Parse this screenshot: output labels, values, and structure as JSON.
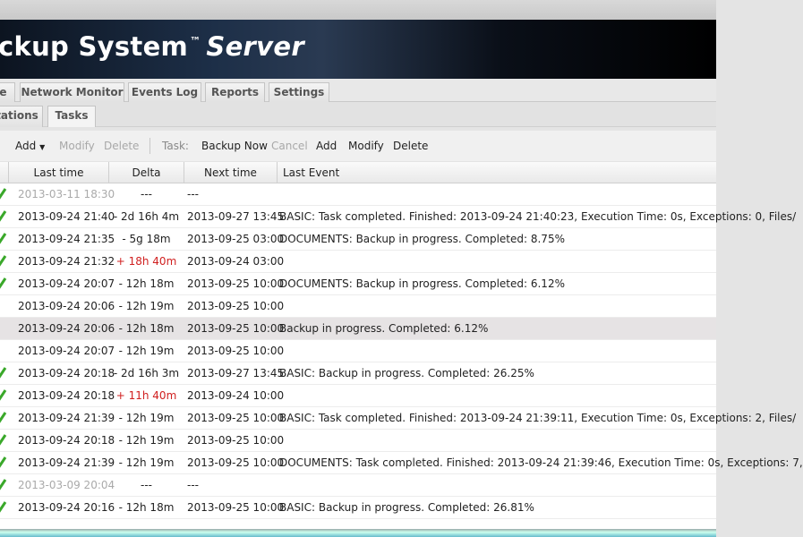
{
  "banner": {
    "title": "ckup System",
    "tm": "™",
    "title2": "Server"
  },
  "tabs": [
    {
      "label": "e"
    },
    {
      "label": "Network Monitor"
    },
    {
      "label": "Events Log"
    },
    {
      "label": "Reports"
    },
    {
      "label": "Settings"
    }
  ],
  "subtabs": [
    {
      "label": "tations"
    },
    {
      "label": "Tasks",
      "active": true
    }
  ],
  "toolbar": {
    "add": "Add",
    "modify": "Modify",
    "delete": "Delete",
    "task_label": "Task:",
    "backup_now": "Backup Now",
    "cancel": "Cancel",
    "task_add": "Add",
    "task_modify": "Modify",
    "task_delete": "Delete"
  },
  "columns": [
    "Last time",
    "Delta",
    "Next time",
    "Last Event"
  ],
  "colors": {
    "ok": "#3aa82a",
    "delta_positive": "#d02020",
    "selected_row": "#e6e3e4"
  },
  "rows": [
    {
      "status": "ok",
      "last": "2013-03-11 18:30",
      "delta": "---",
      "next": "---",
      "event": "",
      "dim": true
    },
    {
      "status": "ok",
      "last": "2013-09-24 21:40",
      "delta": "- 2d 16h 4m",
      "next": "2013-09-27 13:45",
      "event": "BASIC: Task completed. Finished: 2013-09-24 21:40:23, Execution Time: 0s, Exceptions: 0, Files/"
    },
    {
      "status": "ok",
      "last": "2013-09-24 21:35",
      "delta": "- 5g 18m",
      "next": "2013-09-25 03:00",
      "event": "DOCUMENTS: Backup in progress. Completed: 8.75%"
    },
    {
      "status": "ok",
      "last": "2013-09-24 21:32",
      "delta": "+ 18h 40m",
      "next": "2013-09-24 03:00",
      "event": "",
      "late": true
    },
    {
      "status": "ok",
      "last": "2013-09-24 20:07",
      "delta": "- 12h 18m",
      "next": "2013-09-25 10:00",
      "event": "DOCUMENTS: Backup in progress. Completed: 6.12%"
    },
    {
      "status": "none",
      "last": "2013-09-24 20:06",
      "delta": "- 12h 19m",
      "next": "2013-09-25 10:00",
      "event": ""
    },
    {
      "status": "none",
      "last": "2013-09-24 20:06",
      "delta": "- 12h 18m",
      "next": "2013-09-25 10:00",
      "event": "Backup in progress. Completed: 6.12%",
      "selected": true
    },
    {
      "status": "none",
      "last": "2013-09-24 20:07",
      "delta": "- 12h 19m",
      "next": "2013-09-25 10:00",
      "event": ""
    },
    {
      "status": "ok",
      "last": "2013-09-24 20:18",
      "delta": "- 2d 16h 3m",
      "next": "2013-09-27 13:45",
      "event": "BASIC: Backup in progress. Completed: 26.25%"
    },
    {
      "status": "ok",
      "last": "2013-09-24 20:18",
      "delta": "+ 11h 40m",
      "next": "2013-09-24 10:00",
      "event": "",
      "late": true
    },
    {
      "status": "ok",
      "last": "2013-09-24 21:39",
      "delta": "- 12h 19m",
      "next": "2013-09-25 10:00",
      "event": "BASIC: Task completed. Finished: 2013-09-24 21:39:11, Execution Time: 0s, Exceptions: 2, Files/"
    },
    {
      "status": "ok",
      "last": "2013-09-24 20:18",
      "delta": "- 12h 19m",
      "next": "2013-09-25 10:00",
      "event": ""
    },
    {
      "status": "ok",
      "last": "2013-09-24 21:39",
      "delta": "- 12h 19m",
      "next": "2013-09-25 10:00",
      "event": "DOCUMENTS: Task completed. Finished: 2013-09-24 21:39:46, Execution Time: 0s, Exceptions: 7,"
    },
    {
      "status": "ok",
      "last": "2013-03-09 20:04",
      "delta": "---",
      "next": "---",
      "event": "",
      "dim": true
    },
    {
      "status": "ok",
      "last": "2013-09-24 20:16",
      "delta": "- 12h 18m",
      "next": "2013-09-25 10:00",
      "event": "BASIC: Backup in progress. Completed: 26.81%"
    }
  ]
}
